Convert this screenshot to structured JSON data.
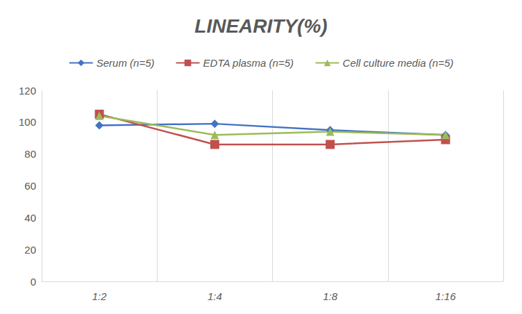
{
  "chart_data": {
    "type": "line",
    "title": "LINEARITY(%)",
    "categories": [
      "1:2",
      "1:4",
      "1:8",
      "1:16"
    ],
    "series": [
      {
        "name": "Serum (n=5)",
        "color": "#4472c4",
        "marker": "diamond",
        "line_style": "solid",
        "values": [
          98,
          99,
          95,
          92
        ]
      },
      {
        "name": "EDTA plasma (n=5)",
        "color": "#c0504d",
        "marker": "square",
        "line_style": "solid",
        "values": [
          105,
          86,
          86,
          89
        ]
      },
      {
        "name": "Cell culture media (n=5)",
        "color": "#9bbb59",
        "marker": "triangle",
        "line_style": "solid",
        "values": [
          104,
          92,
          94,
          92
        ]
      }
    ],
    "ylim": [
      0,
      120
    ],
    "yticks": [
      0,
      20,
      40,
      60,
      80,
      100,
      120
    ],
    "grid": true,
    "legend": "top"
  }
}
